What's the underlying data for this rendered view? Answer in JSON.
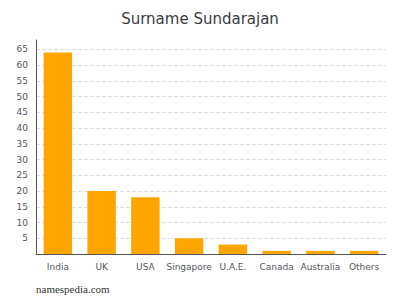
{
  "chart_data": {
    "type": "bar",
    "title": "Surname Sundarajan",
    "categories": [
      "India",
      "UK",
      "USA",
      "Singapore",
      "U.A.E.",
      "Canada",
      "Australia",
      "Others"
    ],
    "values": [
      64,
      20,
      18,
      5,
      3,
      1,
      1,
      1
    ],
    "color": "#FFA500",
    "ylim": [
      0,
      68
    ],
    "yticks": [
      {
        "value": 0,
        "label": ""
      },
      5,
      10,
      15,
      20,
      25,
      30,
      35,
      40,
      45,
      50,
      55,
      60,
      65
    ],
    "grid": true,
    "annotation": "namespedia.com"
  }
}
